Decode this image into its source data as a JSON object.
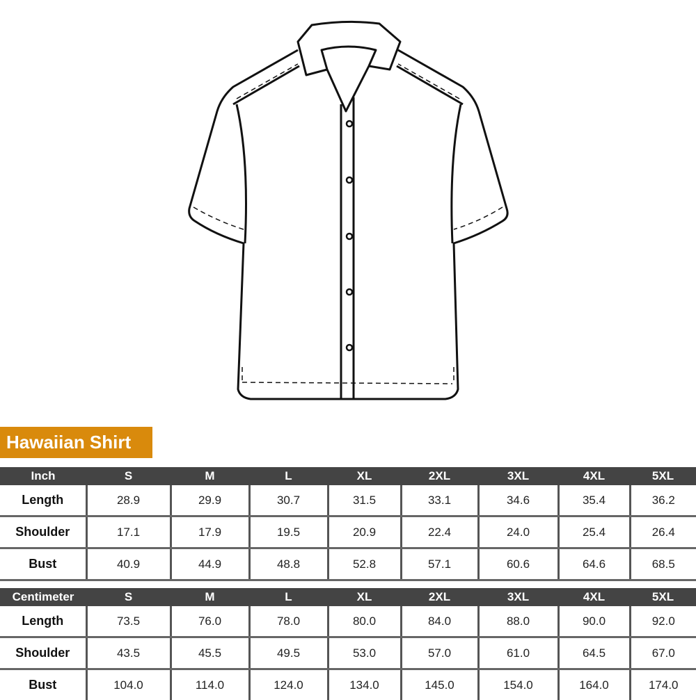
{
  "title": "Hawaiian Shirt",
  "accent_color": "#d98a0c",
  "header_color": "#444444",
  "sizes": [
    "S",
    "M",
    "L",
    "XL",
    "2XL",
    "3XL",
    "4XL",
    "5XL"
  ],
  "tables": [
    {
      "unit": "Inch",
      "rows": [
        {
          "label": "Length",
          "values": [
            "28.9",
            "29.9",
            "30.7",
            "31.5",
            "33.1",
            "34.6",
            "35.4",
            "36.2"
          ]
        },
        {
          "label": "Shoulder",
          "values": [
            "17.1",
            "17.9",
            "19.5",
            "20.9",
            "22.4",
            "24.0",
            "25.4",
            "26.4"
          ]
        },
        {
          "label": "Bust",
          "values": [
            "40.9",
            "44.9",
            "48.8",
            "52.8",
            "57.1",
            "60.6",
            "64.6",
            "68.5"
          ]
        }
      ]
    },
    {
      "unit": "Centimeter",
      "rows": [
        {
          "label": "Length",
          "values": [
            "73.5",
            "76.0",
            "78.0",
            "80.0",
            "84.0",
            "88.0",
            "90.0",
            "92.0"
          ]
        },
        {
          "label": "Shoulder",
          "values": [
            "43.5",
            "45.5",
            "49.5",
            "53.0",
            "57.0",
            "61.0",
            "64.5",
            "67.0"
          ]
        },
        {
          "label": "Bust",
          "values": [
            "104.0",
            "114.0",
            "124.0",
            "134.0",
            "145.0",
            "154.0",
            "164.0",
            "174.0"
          ]
        }
      ]
    }
  ]
}
